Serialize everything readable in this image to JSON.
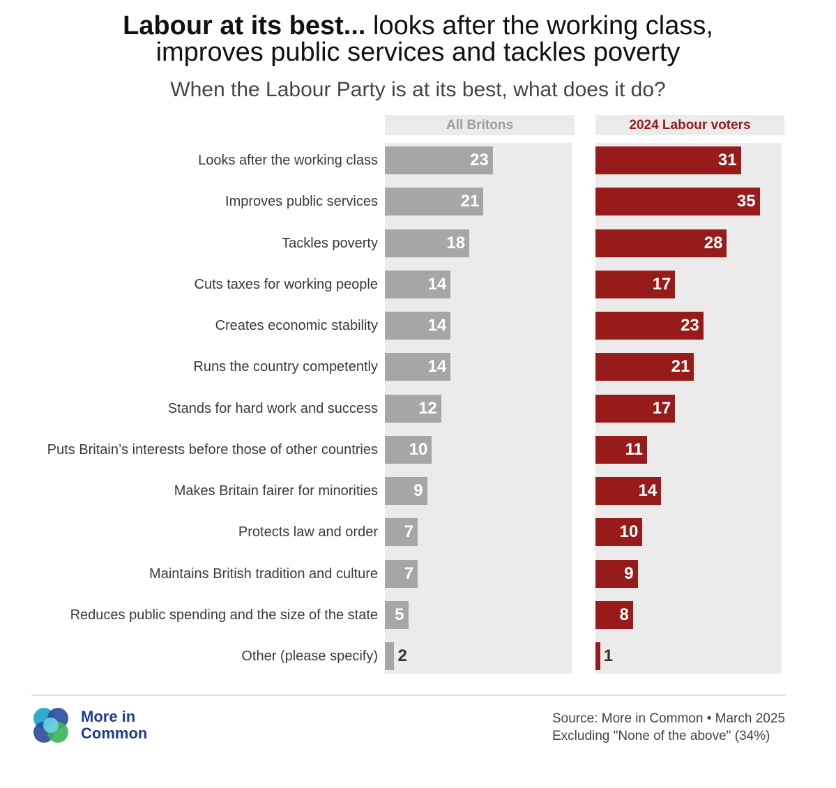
{
  "title": {
    "bold_part": "Labour at its best...",
    "rest_line1": " looks after the working class,",
    "line2": "improves public services and tackles poverty"
  },
  "subtitle": "When the Labour Party is at its best, what does it do?",
  "colors": {
    "all_britons": "#a6a6a6",
    "labour": "#971b1b",
    "panel_bg": "#ebebeb",
    "header_bg": "#ebebeb",
    "labour_header_text": "#971b1b",
    "all_header_text": "#9e9e9e"
  },
  "chart_data": {
    "type": "bar",
    "orientation": "horizontal",
    "categories": [
      "Looks after the working class",
      "Improves public services",
      "Tackles poverty",
      "Cuts taxes for working people",
      "Creates economic stability",
      "Runs the country competently",
      "Stands for hard work and success",
      "Puts Britain’s interests before those of other countries",
      "Makes Britain fairer for minorities",
      "Protects law and order",
      "Maintains British tradition and culture",
      "Reduces public spending and the size of the state",
      "Other (please specify)"
    ],
    "series": [
      {
        "name": "All Britons",
        "values": [
          23,
          21,
          18,
          14,
          14,
          14,
          12,
          10,
          9,
          7,
          7,
          5,
          2
        ]
      },
      {
        "name": "2024 Labour voters",
        "values": [
          31,
          35,
          28,
          17,
          23,
          21,
          17,
          11,
          14,
          10,
          9,
          8,
          1
        ]
      }
    ],
    "xlim": [
      0,
      40
    ]
  },
  "logo": {
    "line1": "More in",
    "line2": "Common"
  },
  "source": {
    "line1": "Source: More in Common • March 2025",
    "line2": "Excluding \"None of the above\" (34%)"
  }
}
